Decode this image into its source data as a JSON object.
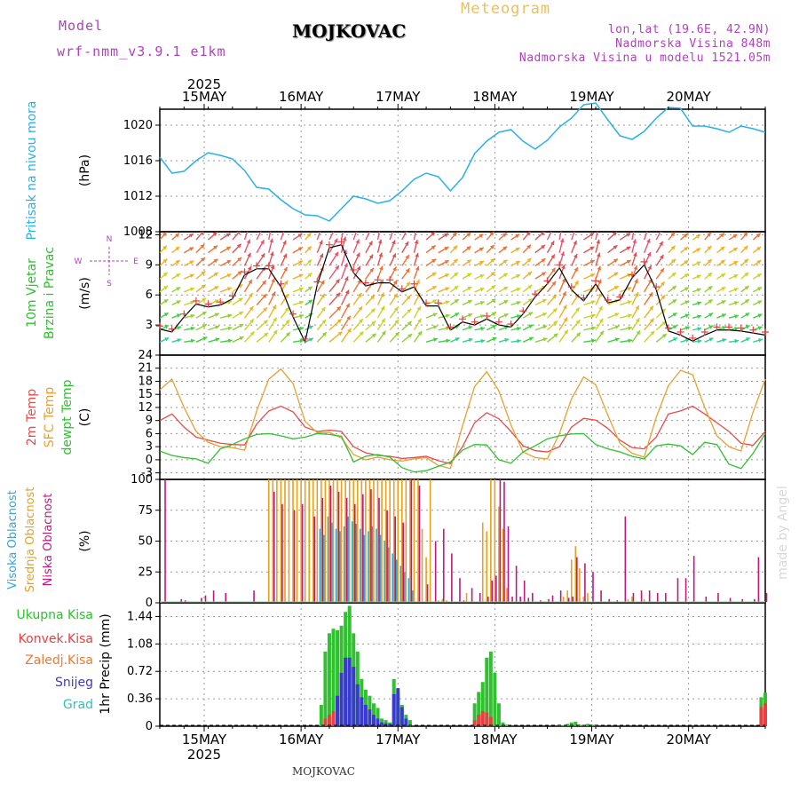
{
  "header": {
    "model_label": "Model",
    "model_name": "wrf-nmm_v3.9.1 e1km",
    "title": "Meteogram",
    "station": "MOJKOVAC",
    "coords": "lon,lat (19.6E, 42.9N)",
    "elevation": "Nadmorska Visina 848m",
    "model_elevation": "Nadmorska Visina u modelu 1521.05m",
    "footer": "MOJKOVAC",
    "signature": "made by Angel"
  },
  "time_axis": {
    "year": "2025",
    "days": [
      "15MAY",
      "16MAY",
      "17MAY",
      "18MAY",
      "19MAY",
      "20MAY"
    ]
  },
  "colors": {
    "pressure": "#2ab0e8",
    "temp2m": "#e84a4a",
    "sfc": "#e8a030",
    "dewpt": "#30c030",
    "high_cloud": "#2aa8e0",
    "mid_cloud": "#e8a020",
    "low_cloud": "#c01880",
    "total_precip": "#30c030",
    "conv_precip": "#e84040",
    "frz_precip": "#f07a30",
    "snow": "#3a3ad0",
    "hail": "#30c0c0"
  },
  "chart_data": [
    {
      "type": "line",
      "panel": "pressure",
      "ylabel": "Pritisak na nivou mora",
      "unit": "(hPa)",
      "yticks": [
        "1008",
        "1012",
        "1016",
        "1020"
      ],
      "ylim": [
        1008,
        1021.8
      ],
      "series": [
        {
          "name": "Pritisak na nivou mora",
          "x_hours": [
            0,
            3,
            6,
            9,
            12,
            15,
            18,
            21,
            24,
            27,
            30,
            33,
            36,
            39,
            42,
            45,
            48,
            51,
            54,
            57,
            60,
            63,
            66,
            69,
            72,
            75,
            78,
            81,
            84,
            87,
            90,
            93,
            96,
            99,
            102,
            105,
            108,
            111,
            114,
            117,
            120,
            123,
            126,
            129,
            132,
            135,
            138,
            141,
            144,
            147,
            150
          ],
          "values": [
            1016.4,
            1014.6,
            1014.8,
            1016.0,
            1016.9,
            1016.6,
            1016.2,
            1014.9,
            1013.0,
            1012.8,
            1011.6,
            1010.6,
            1009.9,
            1009.8,
            1009.2,
            1010.6,
            1012.0,
            1011.7,
            1011.2,
            1011.5,
            1012.6,
            1013.9,
            1014.6,
            1014.2,
            1012.6,
            1014.1,
            1016.8,
            1018.2,
            1019.2,
            1019.5,
            1018.2,
            1017.3,
            1018.3,
            1019.8,
            1020.8,
            1022.3,
            1022.5,
            1020.6,
            1018.8,
            1018.4,
            1019.3,
            1020.8,
            1022.0,
            1021.9,
            1019.9,
            1019.9,
            1019.6,
            1019.2,
            1019.9,
            1019.6,
            1019.2
          ]
        }
      ]
    },
    {
      "type": "line",
      "panel": "wind",
      "ylabel": "10m Vjetar Brzina i Pravac",
      "unit": "(m/s)",
      "yticks": [
        "3",
        "6",
        "9",
        "12"
      ],
      "compass": {
        "n": "N",
        "s": "S",
        "e": "E",
        "w": "W"
      },
      "ylim": [
        0,
        12.3
      ],
      "series": [
        {
          "name": "10m Vjetar Brzina",
          "x_hours": [
            0,
            3,
            6,
            9,
            12,
            15,
            18,
            21,
            24,
            27,
            30,
            33,
            36,
            39,
            42,
            45,
            48,
            51,
            54,
            57,
            60,
            63,
            66,
            69,
            72,
            75,
            78,
            81,
            84,
            87,
            90,
            93,
            96,
            99,
            102,
            105,
            108,
            111,
            114,
            117,
            120,
            123,
            126,
            129,
            132,
            135,
            138,
            141,
            144,
            147,
            150
          ],
          "values": [
            2.6,
            2.3,
            3.8,
            5.1,
            4.8,
            5.0,
            5.6,
            8.0,
            8.6,
            8.6,
            6.8,
            3.8,
            1.3,
            7.0,
            10.7,
            11.0,
            8.2,
            6.9,
            7.2,
            7.2,
            6.3,
            6.8,
            4.9,
            4.9,
            2.5,
            3.3,
            3.0,
            3.6,
            3.0,
            2.8,
            4.1,
            5.8,
            7.1,
            8.7,
            6.5,
            5.4,
            7.1,
            5.2,
            5.5,
            7.7,
            9.0,
            6.5,
            2.4,
            2.0,
            1.4,
            2.0,
            2.5,
            2.5,
            2.4,
            2.2,
            2.0
          ]
        }
      ]
    },
    {
      "type": "line",
      "panel": "temperature",
      "ylabel": "2m Temp / SFC Temp / dewpt Temp",
      "unit": "(C)",
      "yticks": [
        "-3",
        "0",
        "3",
        "6",
        "9",
        "12",
        "15",
        "18",
        "21",
        "24"
      ],
      "ylim": [
        -4.5,
        24
      ],
      "x_hours": [
        0,
        3,
        6,
        9,
        12,
        15,
        18,
        21,
        24,
        27,
        30,
        33,
        36,
        39,
        42,
        45,
        48,
        51,
        54,
        57,
        60,
        63,
        66,
        69,
        72,
        75,
        78,
        81,
        84,
        87,
        90,
        93,
        96,
        99,
        102,
        105,
        108,
        111,
        114,
        117,
        120,
        123,
        126,
        129,
        132,
        135,
        138,
        141,
        144,
        147,
        150
      ],
      "series": [
        {
          "name": "2m Temp",
          "values": [
            9.0,
            10.5,
            7.5,
            5.2,
            4.5,
            3.8,
            3.5,
            3.4,
            8.2,
            11.2,
            12.3,
            11.0,
            7.5,
            6.5,
            6.8,
            6.5,
            3.0,
            1.6,
            1.0,
            0.8,
            0.3,
            0.5,
            0.8,
            -0.2,
            -0.9,
            3.0,
            8.5,
            10.8,
            9.4,
            6.5,
            3.2,
            2.1,
            1.8,
            3.0,
            7.5,
            9.5,
            9.1,
            7.2,
            4.5,
            2.8,
            2.5,
            5.2,
            10.5,
            11.2,
            12.3,
            10.5,
            8.5,
            6.5,
            3.8,
            3.3,
            6.5
          ]
        },
        {
          "name": "SFC Temp",
          "values": [
            16.0,
            18.5,
            12.0,
            6.5,
            4.0,
            3.0,
            2.8,
            2.2,
            11.2,
            18.5,
            20.8,
            17.5,
            8.8,
            6.2,
            6.3,
            5.0,
            1.2,
            0.0,
            0.6,
            0.0,
            -0.3,
            0.2,
            0.5,
            -1.3,
            -2.0,
            7.8,
            16.8,
            20.2,
            15.8,
            8.0,
            1.8,
            0.5,
            0.2,
            6.0,
            14.0,
            19.0,
            17.2,
            10.2,
            3.8,
            1.5,
            0.6,
            9.8,
            17.0,
            20.5,
            19.5,
            12.0,
            5.5,
            3.0,
            2.0,
            11.0,
            18.5
          ]
        },
        {
          "name": "dewpt Temp",
          "values": [
            2.0,
            1.0,
            0.5,
            0.2,
            -0.8,
            2.5,
            3.5,
            4.8,
            5.8,
            6.0,
            5.5,
            4.8,
            5.2,
            6.0,
            5.8,
            5.4,
            -0.5,
            0.8,
            1.2,
            0.6,
            -1.8,
            -2.8,
            -2.5,
            -1.5,
            -0.5,
            2.2,
            3.5,
            3.4,
            0.0,
            -0.8,
            1.8,
            3.2,
            4.8,
            5.5,
            5.9,
            6.0,
            3.5,
            2.5,
            1.8,
            0.8,
            0.2,
            3.2,
            3.6,
            3.2,
            1.2,
            4.0,
            3.5,
            -1.0,
            -2.0,
            1.5,
            6.0
          ]
        }
      ]
    },
    {
      "type": "bar",
      "panel": "cloud",
      "ylabel": "Visoka Oblacnost / Srednja Oblacnost / Niska Oblacnost",
      "unit": "(%)",
      "yticks": [
        "0",
        "25",
        "50",
        "75",
        "100"
      ],
      "ylim": [
        0,
        100
      ],
      "series": [
        {
          "name": "Visoka Oblacnost",
          "x_hours": [
            40,
            41,
            42,
            43,
            44,
            45,
            46,
            47,
            48,
            49,
            50,
            51,
            52,
            53,
            54,
            55,
            56,
            57,
            58,
            59,
            60,
            61,
            62,
            63
          ],
          "values": [
            60,
            55,
            70,
            65,
            60,
            58,
            62,
            70,
            66,
            64,
            60,
            55,
            58,
            62,
            60,
            55,
            50,
            45,
            40,
            35,
            30,
            25,
            20,
            10
          ]
        },
        {
          "name": "Srednja Oblacnost",
          "x_hours": [
            27,
            28,
            29,
            30,
            31,
            32,
            33,
            34,
            35,
            36,
            37,
            38,
            39,
            40,
            41,
            42,
            43,
            44,
            45,
            46,
            47,
            48,
            49,
            50,
            51,
            52,
            53,
            54,
            55,
            56,
            57,
            58,
            59,
            60,
            61,
            62,
            63,
            64,
            65,
            66,
            67,
            69,
            70,
            71,
            76,
            80,
            81,
            82,
            83,
            84,
            85,
            86,
            100,
            101,
            102,
            103,
            104,
            105,
            106,
            116,
            117,
            120
          ],
          "values": [
            100,
            100,
            100,
            100,
            100,
            100,
            100,
            100,
            100,
            100,
            100,
            100,
            100,
            100,
            100,
            100,
            100,
            100,
            100,
            100,
            100,
            100,
            100,
            100,
            100,
            100,
            100,
            100,
            100,
            100,
            100,
            100,
            100,
            100,
            100,
            100,
            100,
            100,
            60,
            37,
            100,
            2,
            3,
            2,
            8,
            65,
            58,
            100,
            100,
            78,
            60,
            12,
            5,
            10,
            35,
            46,
            28,
            5,
            8,
            3,
            5,
            3
          ]
        },
        {
          "name": "Niska Oblacnost",
          "x_hours": [
            0,
            1,
            5,
            6,
            10,
            11,
            13,
            16,
            23,
            28,
            30,
            33,
            35,
            38,
            40,
            42,
            44,
            46,
            48,
            50,
            52,
            54,
            56,
            58,
            60,
            62,
            64,
            66,
            68,
            70,
            72,
            74,
            75,
            77,
            79,
            81,
            82,
            83,
            84,
            85,
            86,
            87,
            88,
            89,
            90,
            91,
            92,
            94,
            96,
            97,
            99,
            101,
            102,
            103,
            105,
            107,
            109,
            111,
            113,
            115,
            117,
            119,
            121,
            123,
            125,
            128,
            130,
            132,
            135,
            138,
            141,
            144,
            147,
            148,
            150
          ],
          "values": [
            0,
            100,
            3,
            2,
            4,
            6,
            10,
            8,
            10,
            90,
            80,
            75,
            80,
            70,
            85,
            95,
            90,
            85,
            80,
            88,
            92,
            85,
            75,
            70,
            65,
            100,
            95,
            15,
            50,
            60,
            40,
            20,
            2,
            12,
            8,
            5,
            18,
            22,
            100,
            98,
            62,
            5,
            30,
            5,
            18,
            4,
            8,
            2,
            3,
            6,
            10,
            4,
            5,
            37,
            32,
            25,
            10,
            3,
            2,
            70,
            8,
            10,
            10,
            8,
            8,
            20,
            20,
            38,
            5,
            8,
            4,
            3,
            3,
            37,
            8
          ]
        }
      ]
    },
    {
      "type": "bar",
      "panel": "precipitation",
      "ylabel": "1hr Precip (mm)",
      "legend": [
        "Ukupna Kisa",
        "Konvek.Kisa",
        "Zaledj.Kisa",
        "Snijeg",
        "Grad"
      ],
      "yticks": [
        "0",
        "0.36",
        "0.72",
        "1.08",
        "1.44"
      ],
      "ylim": [
        0,
        1.62
      ],
      "series": [
        {
          "name": "Ukupna Kisa",
          "x_hours": [
            40,
            41,
            42,
            43,
            44,
            45,
            46,
            47,
            48,
            49,
            50,
            51,
            52,
            53,
            54,
            55,
            56,
            57,
            58,
            59,
            60,
            61,
            62,
            78,
            79,
            80,
            81,
            82,
            83,
            84,
            85,
            86,
            99,
            100,
            101,
            102,
            103,
            104,
            105,
            106,
            107,
            108,
            149,
            150
          ],
          "values": [
            0.28,
            0.98,
            1.22,
            1.28,
            1.26,
            1.32,
            1.5,
            1.58,
            1.22,
            0.98,
            0.62,
            0.48,
            0.4,
            0.3,
            0.24,
            0.1,
            0.08,
            0.05,
            0.62,
            0.42,
            0.28,
            0.15,
            0.08,
            0.3,
            0.45,
            0.58,
            0.9,
            0.98,
            0.7,
            0.3,
            0.05,
            0.02,
            0.02,
            0.01,
            0.03,
            0.05,
            0.06,
            0.02,
            0.01,
            0.03,
            0.02,
            0.02,
            0.38,
            0.44
          ]
        },
        {
          "name": "Konvek.Kisa",
          "x_hours": [
            41,
            42,
            43,
            44,
            78,
            79,
            80,
            81,
            82,
            149,
            150
          ],
          "values": [
            0.1,
            0.15,
            0.2,
            0.12,
            0.08,
            0.15,
            0.2,
            0.18,
            0.12,
            0.25,
            0.3
          ]
        },
        {
          "name": "Snijeg",
          "x_hours": [
            44,
            45,
            46,
            47,
            48,
            49,
            50,
            51,
            52,
            53,
            54,
            55,
            56,
            57,
            58,
            59,
            60,
            61
          ],
          "values": [
            0.4,
            0.7,
            0.9,
            0.9,
            0.78,
            0.55,
            0.38,
            0.28,
            0.22,
            0.15,
            0.1,
            0.05,
            0.04,
            0.03,
            0.42,
            0.5,
            0.25,
            0.1
          ]
        }
      ]
    }
  ]
}
